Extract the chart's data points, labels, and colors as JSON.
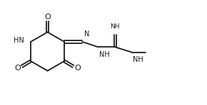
{
  "bg_color": "#ffffff",
  "line_color": "#1a1a1a",
  "line_width": 1.3,
  "font_size": 7.0,
  "fig_width": 2.9,
  "fig_height": 1.48,
  "dpi": 100,
  "xlim": [
    0,
    9.5
  ],
  "ylim": [
    0,
    5.0
  ]
}
